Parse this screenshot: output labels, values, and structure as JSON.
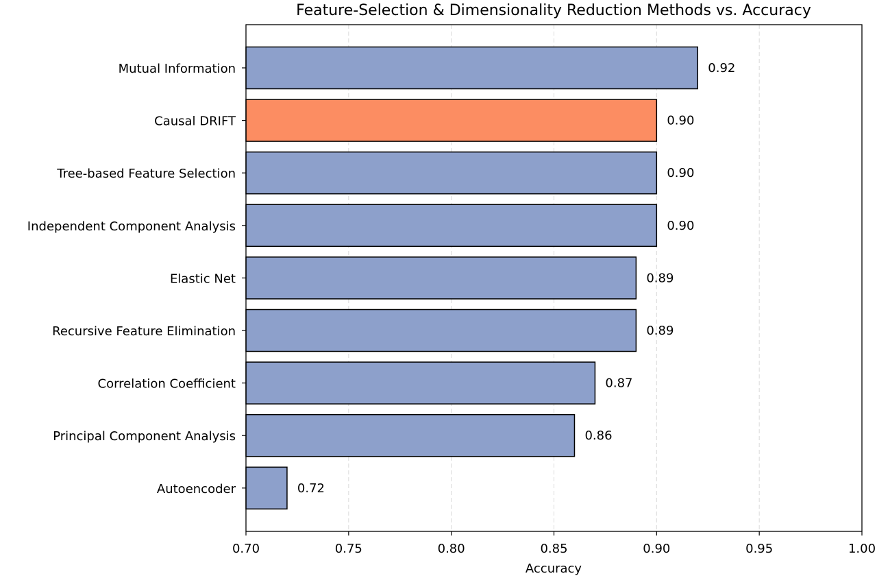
{
  "chart_data": {
    "type": "bar",
    "orientation": "horizontal",
    "title": "Feature-Selection & Dimensionality Reduction Methods vs. Accuracy",
    "xlabel": "Accuracy",
    "ylabel": "",
    "xlim": [
      0.7,
      1.0
    ],
    "xticks": [
      "0.70",
      "0.75",
      "0.80",
      "0.85",
      "0.90",
      "0.95",
      "1.00"
    ],
    "grid": "vertical dashed",
    "categories": [
      "Mutual Information",
      "Causal DRIFT",
      "Tree-based Feature Selection",
      "Independent Component Analysis",
      "Elastic Net",
      "Recursive Feature Elimination",
      "Correlation Coefficient",
      "Principal Component Analysis",
      "Autoencoder"
    ],
    "values": [
      0.92,
      0.9,
      0.9,
      0.9,
      0.89,
      0.89,
      0.87,
      0.86,
      0.72
    ],
    "value_labels": [
      "0.92",
      "0.90",
      "0.90",
      "0.90",
      "0.89",
      "0.89",
      "0.87",
      "0.86",
      "0.72"
    ],
    "highlight_index": 1,
    "colors": {
      "bar": "#8da0cb",
      "highlight": "#fc8d62",
      "edge": "#000000",
      "grid": "#d9d9d9"
    }
  }
}
